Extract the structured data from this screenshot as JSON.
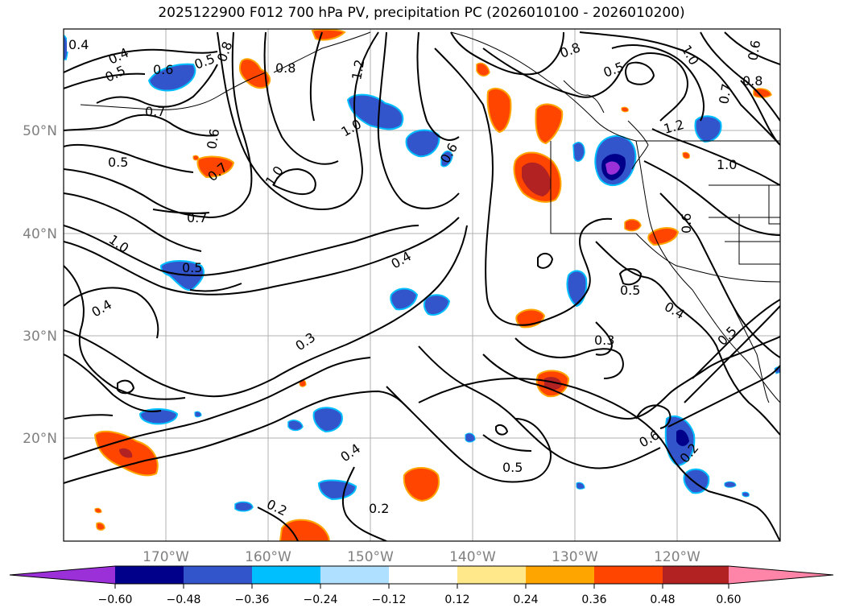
{
  "title": "2025122900 F012 700 hPa PV, precipitation PC (2026010100 - 2026010200)",
  "map": {
    "lon_ticks": [
      "170°W",
      "160°W",
      "150°W",
      "140°W",
      "130°W",
      "120°W"
    ],
    "lat_ticks": [
      "50°N",
      "40°N",
      "30°N",
      "20°N"
    ],
    "contour_labels": [
      "0.4",
      "0.5",
      "0.4",
      "0.6",
      "0.5",
      "0.8",
      "0.7",
      "0.8",
      "1.2",
      "1.0",
      "0.5",
      "1.0",
      "0.7",
      "0.8",
      "1.0",
      "0.6",
      "1.2",
      "0.6",
      "0.5",
      "0.7",
      "1.0",
      "0.7",
      "0.8",
      "0.4",
      "0.3",
      "0.4",
      "0.3",
      "0.5",
      "0.4",
      "0.5",
      "0.6",
      "0.2",
      "0.5",
      "0.4",
      "0.2",
      "0.2",
      "0.5",
      "1.0",
      "0.6",
      "0.6"
    ]
  },
  "colorbar": {
    "ticks": [
      "−0.60",
      "−0.48",
      "−0.36",
      "−0.24",
      "−0.12",
      "0.12",
      "0.24",
      "0.36",
      "0.48",
      "0.60"
    ],
    "colors": [
      "#9b30d9",
      "#00008b",
      "#3355cc",
      "#00bfff",
      "#b0e0ff",
      "#ffffff",
      "#ffe88a",
      "#ffa500",
      "#ff4500",
      "#b22222",
      "#ff85a8"
    ]
  },
  "fill_colors": {
    "pos1": "#ffe88a",
    "pos2": "#ffa500",
    "pos3": "#ff4500",
    "pos4": "#b22222",
    "neg1": "#b0e0ff",
    "neg2": "#00bfff",
    "neg3": "#3355cc",
    "neg4": "#00008b",
    "neg5": "#9b30d9"
  }
}
